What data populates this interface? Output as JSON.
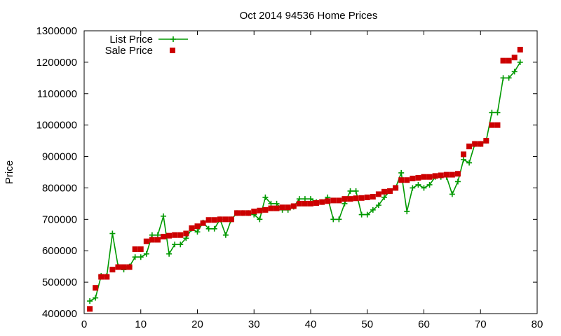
{
  "chart_data": {
    "type": "line",
    "title": "Oct 2014 94536 Home Prices",
    "xlabel": "",
    "ylabel": "Price",
    "xlim": [
      0,
      80
    ],
    "ylim": [
      400000,
      1300000
    ],
    "xticks": [
      0,
      10,
      20,
      30,
      40,
      50,
      60,
      70,
      80
    ],
    "yticks": [
      400000,
      500000,
      600000,
      700000,
      800000,
      900000,
      1000000,
      1100000,
      1200000,
      1300000
    ],
    "xtick_labels": [
      "0",
      "10",
      "20",
      "30",
      "40",
      "50",
      "60",
      "70",
      "80"
    ],
    "ytick_labels": [
      "400000",
      "500000",
      "600000",
      "700000",
      "800000",
      "900000",
      "1000000",
      "1100000",
      "1200000",
      "1300000"
    ],
    "grid": false,
    "legend_position": "top-left",
    "x": [
      1,
      2,
      3,
      4,
      5,
      6,
      7,
      8,
      9,
      10,
      11,
      12,
      13,
      14,
      15,
      16,
      17,
      18,
      19,
      20,
      21,
      22,
      23,
      24,
      25,
      26,
      27,
      28,
      29,
      30,
      31,
      32,
      33,
      34,
      35,
      36,
      37,
      38,
      39,
      40,
      41,
      42,
      43,
      44,
      45,
      46,
      47,
      48,
      49,
      50,
      51,
      52,
      53,
      54,
      55,
      56,
      57,
      58,
      59,
      60,
      61,
      62,
      63,
      64,
      65,
      66,
      67,
      68,
      69,
      70,
      71,
      72,
      73,
      74,
      75,
      76,
      77
    ],
    "series": [
      {
        "name": "List Price",
        "style": "line-plus",
        "color": "#009900",
        "values": [
          440000,
          450000,
          520000,
          520000,
          655000,
          550000,
          540000,
          550000,
          580000,
          580000,
          590000,
          650000,
          650000,
          710000,
          590000,
          620000,
          620000,
          640000,
          670000,
          660000,
          690000,
          670000,
          670000,
          700000,
          650000,
          700000,
          720000,
          720000,
          720000,
          715000,
          700000,
          770000,
          750000,
          750000,
          730000,
          730000,
          740000,
          765000,
          765000,
          765000,
          755000,
          755000,
          770000,
          700000,
          700000,
          750000,
          790000,
          790000,
          715000,
          715000,
          730000,
          745000,
          770000,
          790000,
          800000,
          848000,
          725000,
          800000,
          810000,
          800000,
          810000,
          835000,
          835000,
          835000,
          780000,
          820000,
          890000,
          880000,
          940000,
          940000,
          950000,
          1040000,
          1040000,
          1150000,
          1150000,
          1170000,
          1200000
        ]
      },
      {
        "name": "Sale Price",
        "style": "square-points",
        "color": "#cc0000",
        "values": [
          415000,
          482000,
          517000,
          517000,
          540000,
          548000,
          548000,
          548000,
          605000,
          605000,
          630000,
          635000,
          635000,
          645000,
          648000,
          650000,
          650000,
          655000,
          672000,
          678000,
          688000,
          698000,
          698000,
          700000,
          700000,
          700000,
          720000,
          720000,
          720000,
          725000,
          728000,
          730000,
          735000,
          735000,
          738000,
          738000,
          742000,
          750000,
          750000,
          750000,
          752000,
          755000,
          758000,
          760000,
          760000,
          765000,
          765000,
          767000,
          768000,
          770000,
          772000,
          780000,
          788000,
          790000,
          800000,
          825000,
          825000,
          830000,
          832000,
          835000,
          835000,
          838000,
          840000,
          842000,
          842000,
          845000,
          907000,
          932000,
          940000,
          940000,
          950000,
          1000000,
          1000000,
          1205000,
          1205000,
          1215000,
          1240000
        ]
      }
    ]
  }
}
